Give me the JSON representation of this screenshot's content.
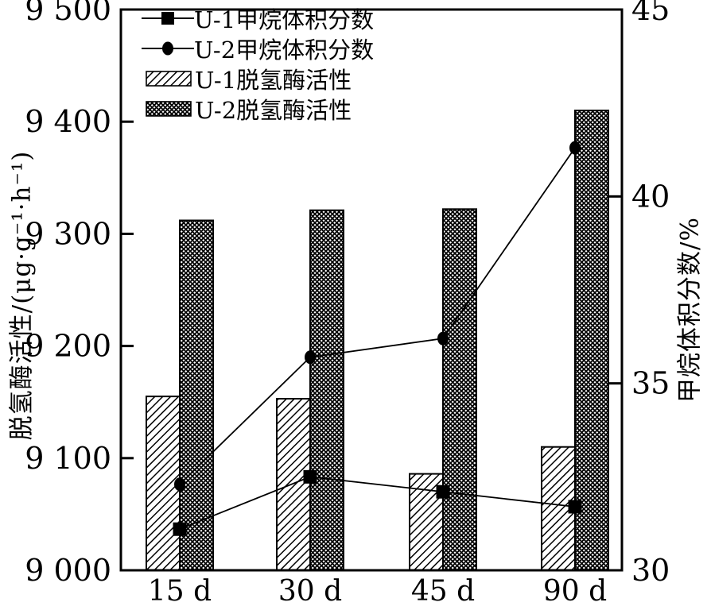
{
  "chart_data": {
    "type": "bar+line",
    "title": "",
    "categories": [
      "15 d",
      "30 d",
      "45 d",
      "90 d"
    ],
    "left_axis": {
      "label": "脱氢酶活性/(μg·g⁻¹·h⁻¹)",
      "min": 9000,
      "max": 9500,
      "ticks": [
        {
          "value": 9000,
          "label": "9 000"
        },
        {
          "value": 9100,
          "label": "9 100"
        },
        {
          "value": 9200,
          "label": "9 200"
        },
        {
          "value": 9300,
          "label": "9 300"
        },
        {
          "value": 9400,
          "label": "9 400"
        },
        {
          "value": 9500,
          "label": "9 500"
        }
      ]
    },
    "right_axis": {
      "label": "甲烷体积分数/%",
      "min": 30,
      "max": 45,
      "ticks": [
        {
          "value": 30,
          "label": "30"
        },
        {
          "value": 35,
          "label": "35"
        },
        {
          "value": 40,
          "label": "40"
        },
        {
          "value": 45,
          "label": "45"
        }
      ]
    },
    "bar_series": [
      {
        "name": "U-1脱氢酶活性",
        "axis": "left",
        "pattern": "diagonal-hatch",
        "values": [
          9155,
          9153,
          9086,
          9110
        ]
      },
      {
        "name": "U-2脱氢酶活性",
        "axis": "left",
        "pattern": "cross-hatch-dots",
        "values": [
          9312,
          9321,
          9322,
          9410
        ]
      }
    ],
    "line_series": [
      {
        "name": "U-1甲烷体积分数",
        "axis": "right",
        "marker": "square",
        "values": [
          31.1,
          32.5,
          32.1,
          31.7
        ]
      },
      {
        "name": "U-2甲烷体积分数",
        "axis": "right",
        "marker": "circle",
        "values": [
          32.3,
          35.7,
          36.2,
          41.3
        ]
      }
    ],
    "legend": {
      "position": "top-left",
      "entries": [
        "U-1甲烷体积分数",
        "U-2甲烷体积分数",
        "U-1脱氢酶活性",
        "U-2脱氢酶活性"
      ]
    },
    "colors": {
      "foreground": "#000000",
      "background": "#ffffff"
    },
    "grid": false
  }
}
